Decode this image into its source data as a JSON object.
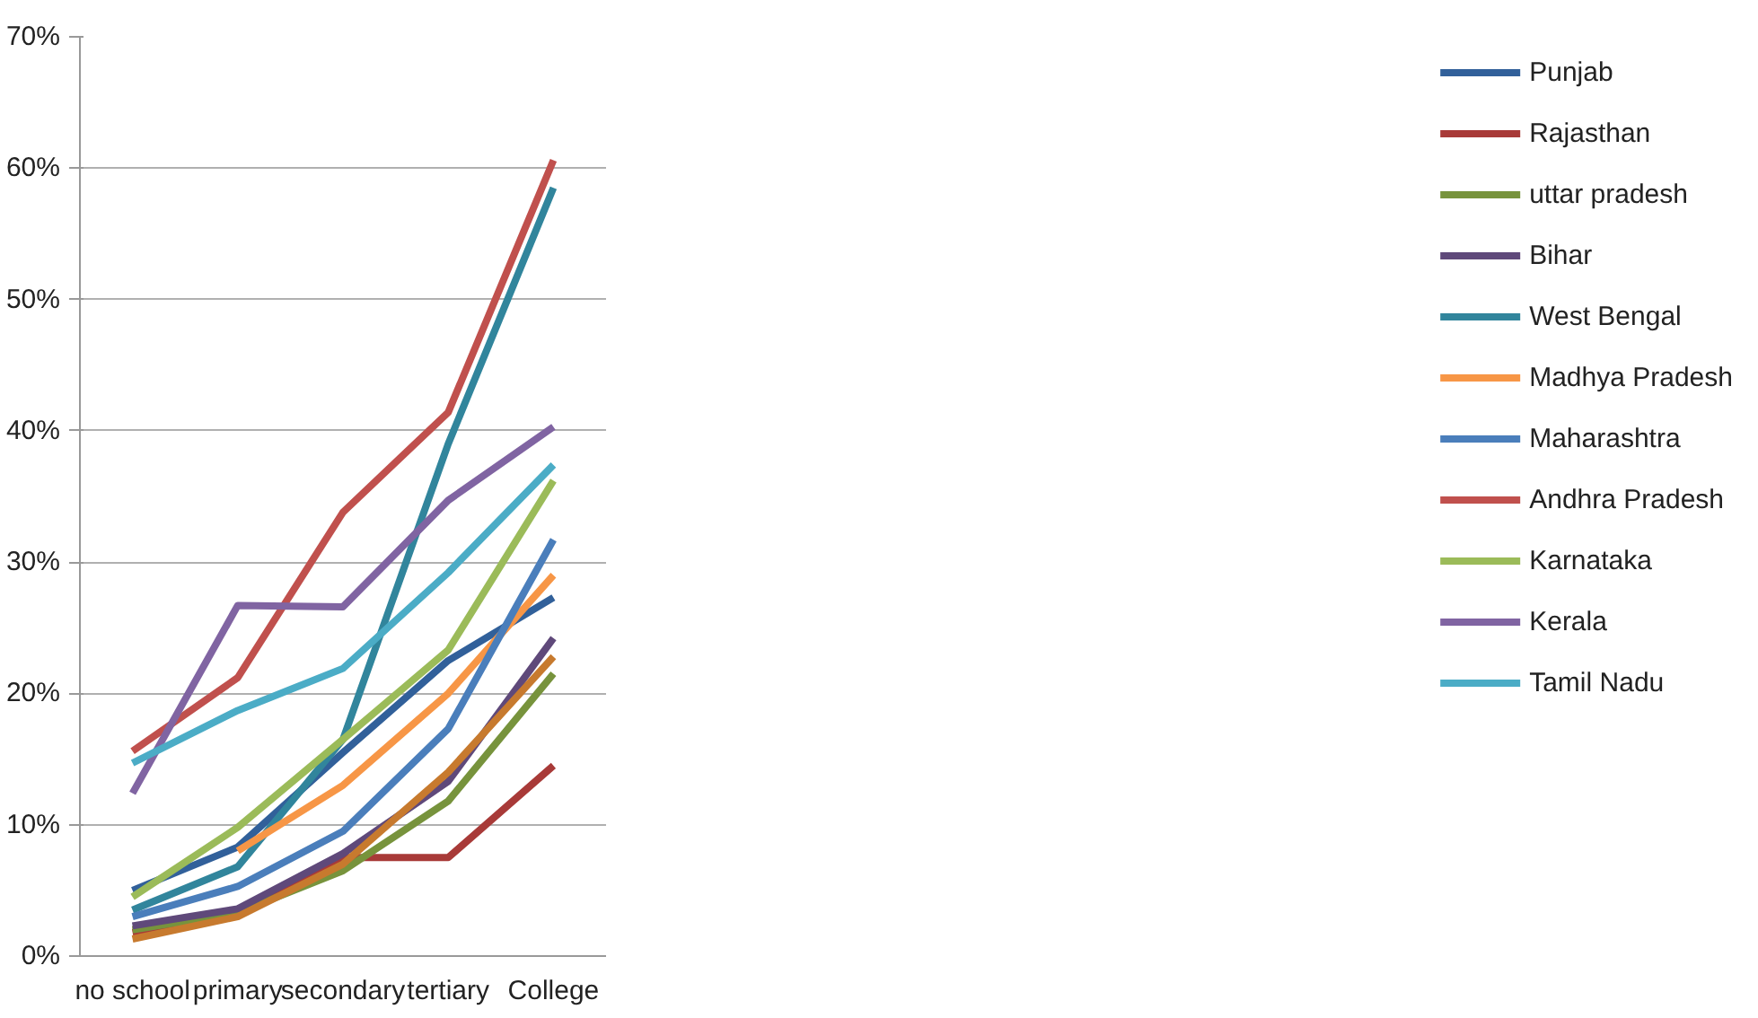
{
  "chart_data": {
    "type": "line",
    "categories": [
      "no school",
      "primary",
      "secondary",
      "tertiary",
      "College"
    ],
    "ylim": [
      0,
      0.7
    ],
    "yticks": [
      {
        "value": 0,
        "label": "0%"
      },
      {
        "value": 0.1,
        "label": "10%"
      },
      {
        "value": 0.2,
        "label": "20%"
      },
      {
        "value": 0.3,
        "label": "30%"
      },
      {
        "value": 0.4,
        "label": "40%"
      },
      {
        "value": 0.5,
        "label": "50%"
      },
      {
        "value": 0.6,
        "label": "60%"
      },
      {
        "value": 0.7,
        "label": "70%"
      }
    ],
    "grid": "y",
    "legend": "right",
    "marker": "none",
    "line_style": "solid",
    "series": [
      {
        "name": "Punjab",
        "color": "#31609a",
        "values": [
          0.05,
          0.083,
          0.155,
          0.225,
          0.273
        ]
      },
      {
        "name": "Rajasthan",
        "color": "#a83a38",
        "values": [
          0.018,
          0.033,
          0.075,
          0.075,
          0.145
        ]
      },
      {
        "name": "uttar pradesh",
        "color": "#77933c",
        "values": [
          0.02,
          0.033,
          0.065,
          0.118,
          0.215
        ]
      },
      {
        "name": "Bihar",
        "color": "#5f497a",
        "values": [
          0.023,
          0.036,
          0.078,
          0.133,
          0.242
        ]
      },
      {
        "name": "West Bengal",
        "color": "#31859c",
        "values": [
          0.035,
          0.068,
          0.165,
          0.39,
          0.585
        ]
      },
      {
        "name": "Madhya Pradesh",
        "color": "#f79646",
        "values": [
          null,
          0.08,
          0.13,
          0.2,
          0.29
        ]
      },
      {
        "name": "Maharashtra",
        "color": "#4a7ebb",
        "values": [
          0.03,
          0.053,
          0.095,
          0.173,
          0.317
        ]
      },
      {
        "name": "Andhra Pradesh",
        "color": "#c0504d",
        "values": [
          0.156,
          0.212,
          0.338,
          0.414,
          0.606
        ]
      },
      {
        "name": "Karnataka",
        "color": "#9bbb59",
        "values": [
          0.045,
          0.098,
          0.165,
          0.233,
          0.362
        ]
      },
      {
        "name": "Kerala",
        "color": "#8064a2",
        "values": [
          0.124,
          0.267,
          0.266,
          0.347,
          0.403
        ]
      },
      {
        "name": "Tamil Nadu",
        "color": "#4bacc6",
        "values": [
          0.147,
          0.187,
          0.219,
          0.292,
          0.374
        ]
      },
      {
        "color": "#c77a2e",
        "values": [
          0.013,
          0.03,
          0.07,
          0.14,
          0.228
        ]
      }
    ]
  }
}
